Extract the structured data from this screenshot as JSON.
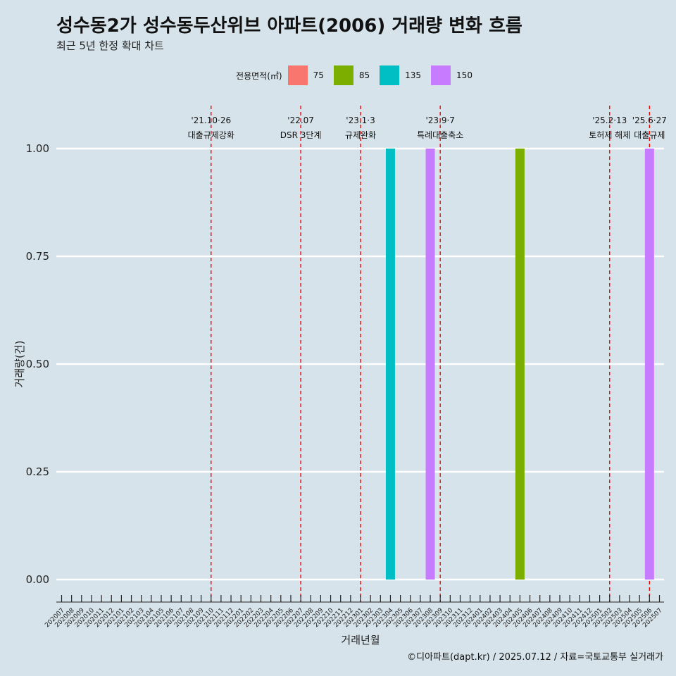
{
  "title": "성수동2가 성수동두산위브 아파트(2006) 거래량 변화 흐름",
  "subtitle": "최근 5년 한정 확대 차트",
  "caption": "©디아파트(dapt.kr) / 2025.07.12 / 자료=국토교통부 실거래가",
  "legend": {
    "title": "전용면적(㎡)",
    "items": [
      {
        "label": "75",
        "color": "#f8766d"
      },
      {
        "label": "85",
        "color": "#7cae00"
      },
      {
        "label": "135",
        "color": "#00bfc4"
      },
      {
        "label": "150",
        "color": "#c77cff"
      }
    ]
  },
  "chart_data": {
    "type": "bar",
    "xlabel": "거래년월",
    "ylabel": "거래량(건)",
    "ylim": [
      0,
      1
    ],
    "yticks": [
      "0.00",
      "0.25",
      "0.50",
      "0.75",
      "1.00"
    ],
    "categories": [
      "202007",
      "202008",
      "202009",
      "202010",
      "202011",
      "202012",
      "202101",
      "202102",
      "202103",
      "202104",
      "202105",
      "202106",
      "202107",
      "202108",
      "202109",
      "202110",
      "202111",
      "202112",
      "202201",
      "202202",
      "202203",
      "202204",
      "202205",
      "202206",
      "202207",
      "202208",
      "202209",
      "202210",
      "202211",
      "202212",
      "202301",
      "202302",
      "202303",
      "202304",
      "202305",
      "202306",
      "202307",
      "202308",
      "202309",
      "202310",
      "202311",
      "202312",
      "202401",
      "202402",
      "202403",
      "202404",
      "202405",
      "202406",
      "202407",
      "202408",
      "202409",
      "202410",
      "202411",
      "202412",
      "202501",
      "202502",
      "202503",
      "202504",
      "202505",
      "202506",
      "202507"
    ],
    "series": [
      {
        "name": "75",
        "color": "#f8766d",
        "points": []
      },
      {
        "name": "85",
        "color": "#7cae00",
        "points": [
          {
            "x": "202405",
            "y": 1
          }
        ]
      },
      {
        "name": "135",
        "color": "#00bfc4",
        "points": [
          {
            "x": "202304",
            "y": 1
          }
        ]
      },
      {
        "name": "150",
        "color": "#c77cff",
        "points": [
          {
            "x": "202308",
            "y": 1
          },
          {
            "x": "202506",
            "y": 1
          }
        ]
      }
    ],
    "events": [
      {
        "x": "202110",
        "date": "'21.10·26",
        "label": "대출규제강화"
      },
      {
        "x": "202207",
        "date": "'22.07",
        "label": "DSR 3단계"
      },
      {
        "x": "202301",
        "date": "'23.1·3",
        "label": "규제완화"
      },
      {
        "x": "202309",
        "date": "'23.9·7",
        "label": "특례대출축소"
      },
      {
        "x": "202502",
        "date": "'25.2·13",
        "label": "토허제 해제"
      },
      {
        "x": "202506",
        "date": "'25.6·27",
        "label": "대출규제"
      }
    ],
    "grid": true,
    "legend_position": "top"
  }
}
